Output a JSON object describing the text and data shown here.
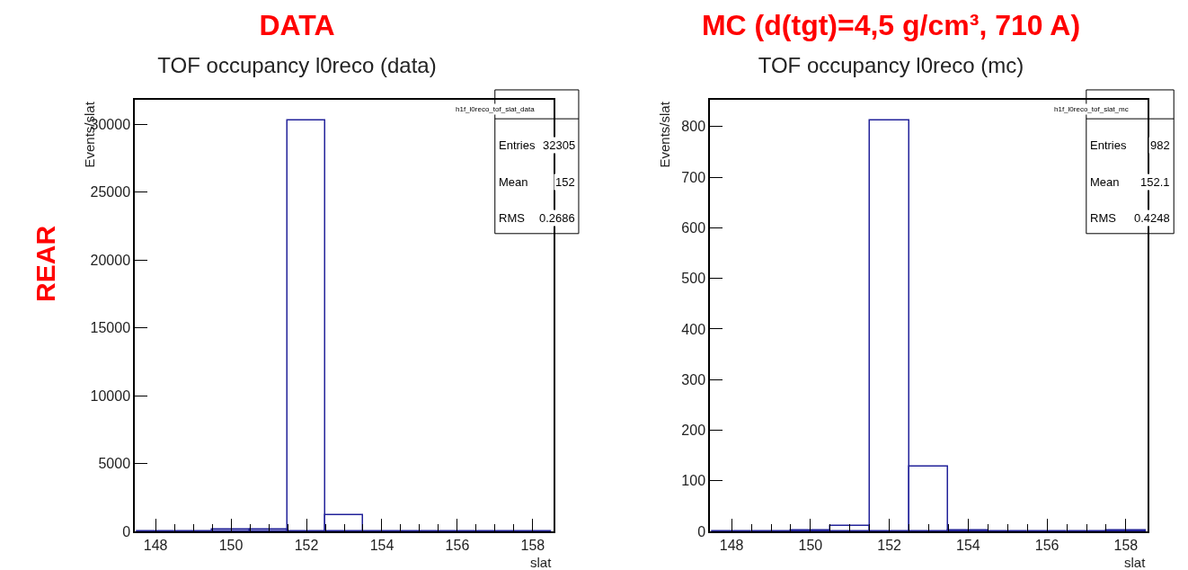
{
  "chart_data": [
    {
      "type": "histogram",
      "title": "DATA",
      "subtitle": "TOF occupancy l0reco (data)",
      "xlabel": "slat",
      "ylabel": "Events/slat",
      "annotations": [
        "h1f_l0reco_tof_slat_data",
        "Entries 32305",
        "Mean 152",
        "RMS 0.2686",
        "REAR"
      ],
      "bins": [
        147.5,
        148.5,
        149.5,
        150.5,
        151.5,
        152.5,
        153.5,
        154.5,
        155.5,
        156.5,
        157.5,
        158.5
      ],
      "values": [
        0,
        0,
        100,
        100,
        30250,
        1190,
        0,
        0,
        0,
        0,
        0
      ],
      "color": "#22229a",
      "xlim": [
        147.45,
        158.55
      ],
      "ylim": [
        0,
        31800
      ],
      "xticks": [
        148,
        {
          "value": 148.5,
          "label": null
        },
        {
          "value": 149,
          "label": null
        },
        {
          "value": 149.5,
          "label": null
        },
        150,
        {
          "value": 150.5,
          "label": null
        },
        {
          "value": 151,
          "label": null
        },
        {
          "value": 151.5,
          "label": null
        },
        152,
        {
          "value": 152.5,
          "label": null
        },
        {
          "value": 153,
          "label": null
        },
        {
          "value": 153.5,
          "label": null
        },
        154,
        {
          "value": 154.5,
          "label": null
        },
        {
          "value": 155,
          "label": null
        },
        {
          "value": 155.5,
          "label": null
        },
        156,
        {
          "value": 156.5,
          "label": null
        },
        {
          "value": 157,
          "label": null
        },
        {
          "value": 157.5,
          "label": null
        },
        158
      ],
      "yticks": [
        0,
        5000,
        10000,
        15000,
        20000,
        25000,
        30000
      ],
      "grid": false,
      "legend": false
    },
    {
      "type": "histogram",
      "title": "MC (d(tgt)=4,5 g/cm³, 710 A)",
      "subtitle": "TOF occupancy l0reco (mc)",
      "xlabel": "slat",
      "ylabel": "Events/slat",
      "annotations": [
        "h1f_l0reco_tof_slat_mc",
        "Entries 982",
        "Mean 152.1",
        "RMS 0.4248"
      ],
      "bins": [
        147.5,
        148.5,
        149.5,
        150.5,
        151.5,
        152.5,
        153.5,
        154.5,
        155.5,
        156.5,
        157.5,
        158.5
      ],
      "values": [
        0,
        0,
        2,
        11,
        812,
        128,
        2,
        0,
        0,
        0,
        2
      ],
      "color": "#22229a",
      "xlim": [
        147.45,
        158.55
      ],
      "ylim": [
        0,
        853
      ],
      "xticks": [
        148,
        {
          "value": 148.5,
          "label": null
        },
        {
          "value": 149,
          "label": null
        },
        {
          "value": 149.5,
          "label": null
        },
        150,
        {
          "value": 150.5,
          "label": null
        },
        {
          "value": 151,
          "label": null
        },
        {
          "value": 151.5,
          "label": null
        },
        152,
        {
          "value": 152.5,
          "label": null
        },
        {
          "value": 153,
          "label": null
        },
        {
          "value": 153.5,
          "label": null
        },
        154,
        {
          "value": 154.5,
          "label": null
        },
        {
          "value": 155,
          "label": null
        },
        {
          "value": 155.5,
          "label": null
        },
        156,
        {
          "value": 156.5,
          "label": null
        },
        {
          "value": 157,
          "label": null
        },
        {
          "value": 157.5,
          "label": null
        },
        158
      ],
      "yticks": [
        0,
        100,
        200,
        300,
        400,
        500,
        600,
        700,
        800
      ],
      "grid": false,
      "legend": false
    }
  ]
}
